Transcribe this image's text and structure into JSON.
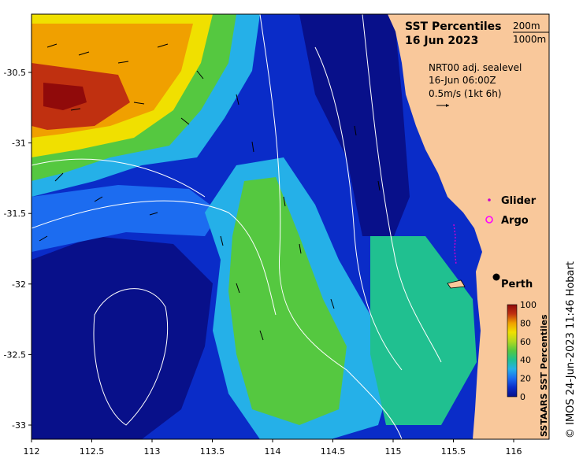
{
  "title_line1": "SST Percentiles",
  "title_line2": "16 Jun 2023",
  "depth_contour_1": "200m",
  "depth_contour_2": "1000m",
  "current_source": "NRT00 adj. sealevel",
  "current_time": "16-Jun 06:00Z",
  "vector_scale": "0.5m/s (1kt 6h)",
  "legend_glider": "Glider",
  "legend_argo": "Argo",
  "city_label": "Perth",
  "colorbar_title": "SSTAARS SST Percentiles",
  "credit": "© IMOS 24-Jun-2023 11:46 Hobart",
  "x_ticks": [
    "112",
    "112.5",
    "113",
    "113.5",
    "114",
    "114.5",
    "115",
    "115.5",
    "116"
  ],
  "y_ticks": [
    "-30.5",
    "-31",
    "-31.5",
    "-32",
    "-32.5",
    "-33"
  ],
  "colorbar_ticks": [
    "0",
    "20",
    "40",
    "60",
    "80",
    "100"
  ],
  "colors": {
    "land": "#f9c89b",
    "glider": "#cc00cc",
    "argo": "#ff00ff",
    "scale": [
      "#08108a",
      "#0a2cc8",
      "#1c6cf0",
      "#25b0e8",
      "#20c090",
      "#55c840",
      "#b0d820",
      "#f0e000",
      "#f0a000",
      "#e07000",
      "#c03010",
      "#900a0a"
    ]
  }
}
